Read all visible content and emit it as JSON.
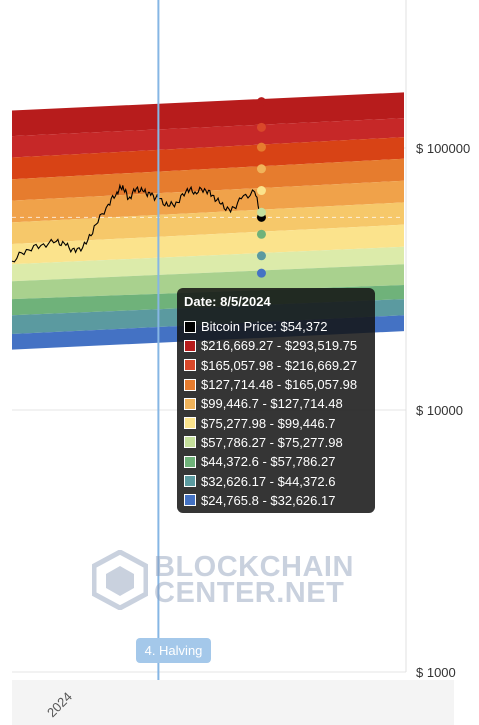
{
  "chart_data": {
    "type": "area",
    "title": "",
    "yscale": "log",
    "ylim": [
      1000,
      170000
    ],
    "y_ticks": [
      "$ 100000",
      "$ 10000",
      "$ 1000"
    ],
    "y_tick_values": [
      100000,
      10000,
      1000
    ],
    "x_ticks": [
      "2024"
    ],
    "x_tick_dates": [
      "2024-01-01"
    ],
    "x_range": [
      "2023-11-20",
      "2024-12-31"
    ],
    "marker_date": "2024-04-20",
    "marker_label": "4. Halving",
    "grid": true,
    "bands": [
      {
        "color": "#b71c1c",
        "start_upper": 139000,
        "end_upper": 163000
      },
      {
        "color": "#c62828",
        "start_upper": 111000,
        "end_upper": 130000
      },
      {
        "color": "#d84315",
        "start_upper": 92000,
        "end_upper": 110000
      },
      {
        "color": "#e67c2e",
        "start_upper": 76000,
        "end_upper": 91000
      },
      {
        "color": "#f0a24a",
        "start_upper": 63000,
        "end_upper": 75000
      },
      {
        "color": "#f6c86a",
        "start_upper": 52000,
        "end_upper": 62000
      },
      {
        "color": "#fbe38c",
        "start_upper": 43000,
        "end_upper": 51000
      },
      {
        "color": "#dcebaa",
        "start_upper": 36000,
        "end_upper": 42000
      },
      {
        "color": "#a9d18e",
        "start_upper": 31000,
        "end_upper": 36000
      },
      {
        "color": "#6fb27a",
        "start_upper": 26500,
        "end_upper": 30000
      },
      {
        "color": "#5b9aa0",
        "start_upper": 23000,
        "end_upper": 26500
      },
      {
        "color": "#4472c4",
        "start_upper": 19500,
        "end_upper": 23000,
        "start_lower": 17000,
        "end_lower": 20000
      }
    ],
    "price_series": {
      "name": "Bitcoin Price",
      "color": "#000000",
      "points": [
        [
          "2023-11-20",
          37000
        ],
        [
          "2023-12-05",
          41000
        ],
        [
          "2023-12-20",
          42500
        ],
        [
          "2024-01-05",
          44000
        ],
        [
          "2024-01-15",
          42500
        ],
        [
          "2024-01-25",
          40000
        ],
        [
          "2024-02-05",
          43000
        ],
        [
          "2024-02-15",
          51000
        ],
        [
          "2024-02-28",
          61000
        ],
        [
          "2024-03-08",
          68000
        ],
        [
          "2024-03-14",
          72000
        ],
        [
          "2024-03-20",
          64000
        ],
        [
          "2024-03-28",
          70000
        ],
        [
          "2024-04-05",
          68000
        ],
        [
          "2024-04-12",
          66000
        ],
        [
          "2024-04-20",
          64000
        ],
        [
          "2024-04-30",
          60000
        ],
        [
          "2024-05-10",
          62000
        ],
        [
          "2024-05-20",
          70000
        ],
        [
          "2024-05-28",
          68000
        ],
        [
          "2024-06-07",
          70000
        ],
        [
          "2024-06-15",
          66000
        ],
        [
          "2024-06-24",
          61000
        ],
        [
          "2024-07-04",
          57000
        ],
        [
          "2024-07-15",
          64000
        ],
        [
          "2024-07-29",
          68000
        ],
        [
          "2024-08-05",
          54372
        ]
      ]
    },
    "tooltip": {
      "title": "Date: 8/5/2024",
      "rows": [
        {
          "color": "#000000",
          "text": "Bitcoin Price: $54,372"
        },
        {
          "color": "#b71c1c",
          "text": "$216,669.27 - $293,519.75"
        },
        {
          "color": "#d9482a",
          "text": "$165,057.98 - $216,669.27"
        },
        {
          "color": "#e67c2e",
          "text": "$127,714.48 - $165,057.98"
        },
        {
          "color": "#f0b35a",
          "text": "$99,446.7 - $127,714.48"
        },
        {
          "color": "#fbe38c",
          "text": "$75,277.98 - $99,446.7"
        },
        {
          "color": "#c5df9c",
          "text": "$57,786.27 - $75,277.98"
        },
        {
          "color": "#6fb27a",
          "text": "$44,372.6 - $57,786.27"
        },
        {
          "color": "#5b9aa0",
          "text": "$32,626.17 - $44,372.6"
        },
        {
          "color": "#4472c4",
          "text": "$24,765.8 - $32,626.17"
        }
      ]
    }
  },
  "watermark": {
    "line1": "BLOCKCHAIN",
    "line2_a": "CENTER",
    "line2_b": ".NET"
  }
}
